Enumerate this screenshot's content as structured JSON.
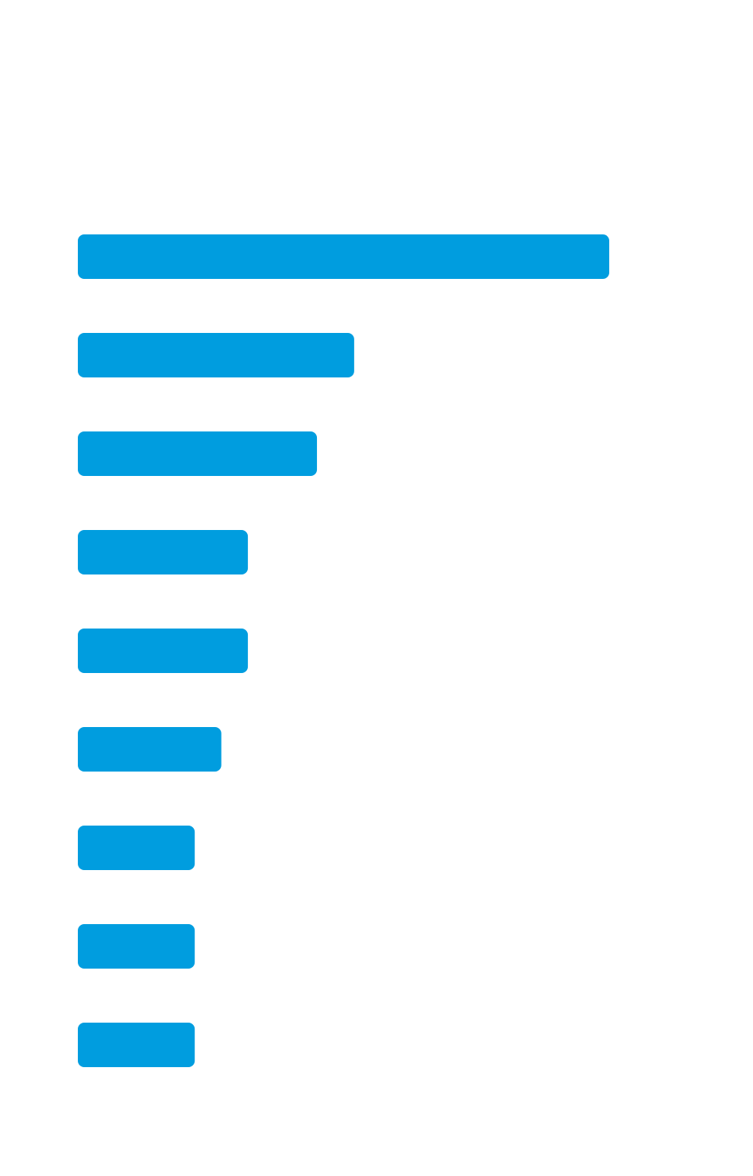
{
  "chart_data": {
    "type": "bar",
    "orientation": "horizontal",
    "categories": [
      null,
      null,
      null,
      null,
      null,
      null,
      null,
      null,
      null
    ],
    "values": [
      100,
      52,
      45,
      32,
      32,
      27,
      22,
      22,
      22
    ],
    "color": "#009ddf",
    "xlim": [
      0,
      100
    ]
  }
}
